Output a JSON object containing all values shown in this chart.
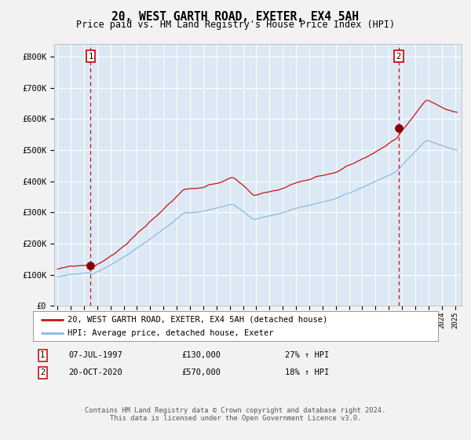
{
  "title": "20, WEST GARTH ROAD, EXETER, EX4 5AH",
  "subtitle": "Price paid vs. HM Land Registry's House Price Index (HPI)",
  "legend_line1": "20, WEST GARTH ROAD, EXETER, EX4 5AH (detached house)",
  "legend_line2": "HPI: Average price, detached house, Exeter",
  "sale1_label": "1",
  "sale1_date_str": "07-JUL-1997",
  "sale1_price_str": "£130,000",
  "sale1_hpi_str": "27% ↑ HPI",
  "sale1_year": 1997,
  "sale1_month": 7,
  "sale1_price": 130000,
  "sale2_label": "2",
  "sale2_date_str": "20-OCT-2020",
  "sale2_price_str": "£570,000",
  "sale2_hpi_str": "18% ↑ HPI",
  "sale2_year": 2020,
  "sale2_month": 10,
  "sale2_price": 570000,
  "ylabel_ticks": [
    "£0",
    "£100K",
    "£200K",
    "£300K",
    "£400K",
    "£500K",
    "£600K",
    "£700K",
    "£800K"
  ],
  "ytick_values": [
    0,
    100000,
    200000,
    300000,
    400000,
    500000,
    600000,
    700000,
    800000
  ],
  "ylim": [
    0,
    840000
  ],
  "xlim_start": 1994.75,
  "xlim_end": 2025.5,
  "fig_bg_color": "#f2f2f2",
  "plot_bg_color": "#dce9f5",
  "grid_color": "#ffffff",
  "hpi_line_color": "#88bbdd",
  "price_line_color": "#cc1111",
  "dot_color": "#880000",
  "vline_color": "#cc1111",
  "annotation_box_edgecolor": "#cc1111",
  "legend_box_edgecolor": "#999999",
  "footer_text": "Contains HM Land Registry data © Crown copyright and database right 2024.\nThis data is licensed under the Open Government Licence v3.0."
}
